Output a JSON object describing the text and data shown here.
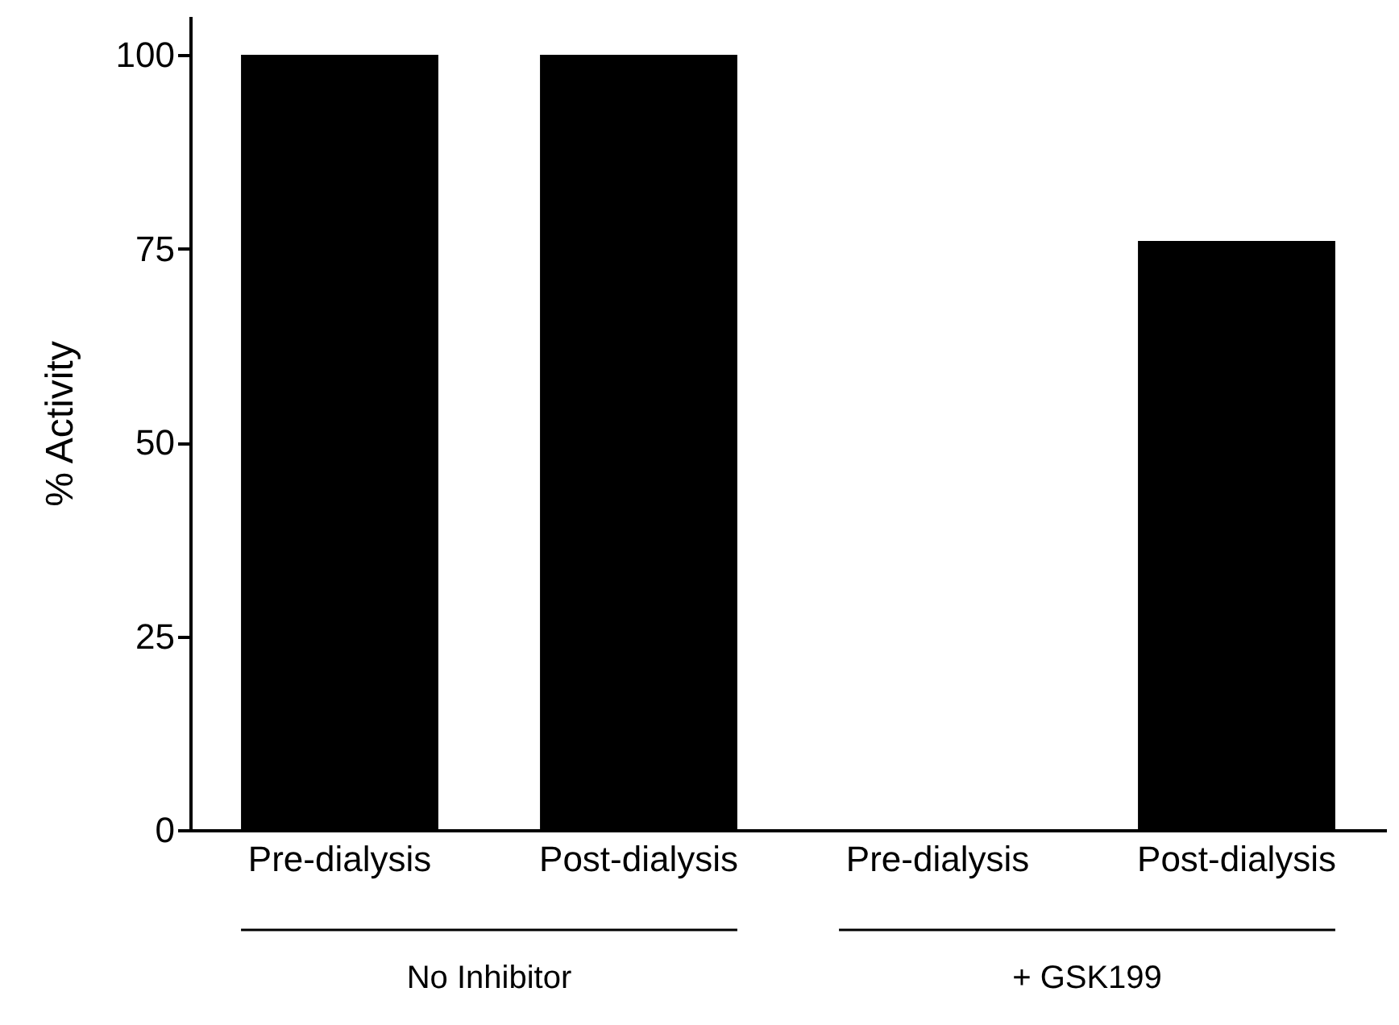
{
  "chart_data": {
    "type": "bar",
    "categories": [
      "Pre-dialysis",
      "Post-dialysis",
      "Pre-dialysis",
      "Post-dialysis"
    ],
    "values": [
      100,
      100,
      0,
      76
    ],
    "color": "#000000",
    "ylabel": "% Activity",
    "ylim": [
      0,
      105
    ],
    "yticks": [
      0,
      25,
      50,
      75,
      100
    ],
    "grid": false,
    "annotations": [
      "No Inhibitor",
      "+ GSK199"
    ]
  }
}
